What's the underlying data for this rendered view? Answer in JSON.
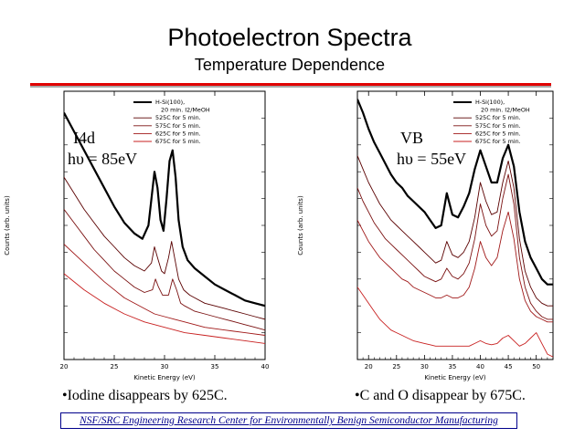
{
  "slide": {
    "title": "Photoelectron Spectra",
    "subtitle": "Temperature Dependence",
    "footer": "NSF/SRC Engineering Research Center for Environmentally Benign Semiconductor Manufacturing",
    "accent_color": "#e00000",
    "footer_color": "#00008b"
  },
  "chart_data": [
    {
      "type": "line",
      "id": "i4d",
      "label_line1": "I4d",
      "label_line2": "hυ = 85eV",
      "caption": "•Iodine disappears by 625C.",
      "xlabel": "Kinetic Energy (eV)",
      "ylabel": "Counts (arb. units)",
      "xlim": [
        20,
        40
      ],
      "xticks": [
        "20",
        "25",
        "30",
        "35",
        "40"
      ],
      "xtick_values": [
        20,
        25,
        30,
        35,
        40
      ],
      "legend": [
        "H-Si(100),",
        "20 min. I2/MeOH",
        "525C for 5 min.",
        "575C for 5 min.",
        "625C for 5 min.",
        "675C for 5 min."
      ],
      "legend_position": "top-right",
      "series": [
        {
          "name": "H-Si(100), 20 min. I2/MeOH",
          "color": "#000000",
          "bold": true,
          "x": [
            20,
            21,
            22,
            23,
            24,
            25,
            26,
            27,
            27.8,
            28.4,
            28.7,
            29.0,
            29.3,
            29.6,
            29.9,
            30.2,
            30.5,
            30.8,
            31.1,
            31.4,
            31.8,
            32.3,
            33,
            34,
            35,
            36,
            37,
            38,
            39,
            40
          ],
          "y": [
            0.92,
            0.85,
            0.78,
            0.71,
            0.64,
            0.57,
            0.51,
            0.47,
            0.45,
            0.5,
            0.6,
            0.7,
            0.64,
            0.52,
            0.48,
            0.6,
            0.74,
            0.78,
            0.68,
            0.52,
            0.42,
            0.37,
            0.34,
            0.31,
            0.28,
            0.26,
            0.24,
            0.22,
            0.21,
            0.2
          ]
        },
        {
          "name": "525C for 5 min.",
          "color": "#5a0000",
          "x": [
            20,
            21,
            22,
            23,
            24,
            25,
            26,
            27,
            28,
            28.7,
            29.0,
            29.3,
            29.7,
            30.0,
            30.4,
            30.7,
            31.0,
            31.4,
            31.9,
            32.5,
            33,
            34,
            35,
            36,
            37,
            38,
            39,
            40
          ],
          "y": [
            0.68,
            0.62,
            0.56,
            0.51,
            0.46,
            0.42,
            0.38,
            0.35,
            0.33,
            0.36,
            0.42,
            0.38,
            0.33,
            0.32,
            0.38,
            0.44,
            0.38,
            0.3,
            0.26,
            0.24,
            0.23,
            0.21,
            0.2,
            0.19,
            0.18,
            0.17,
            0.16,
            0.15
          ]
        },
        {
          "name": "575C for 5 min.",
          "color": "#7a1010",
          "x": [
            20,
            21,
            22,
            23,
            24,
            25,
            26,
            27,
            28,
            28.8,
            29.1,
            29.4,
            29.8,
            30.4,
            30.8,
            31.2,
            31.6,
            32,
            33,
            34,
            35,
            36,
            37,
            38,
            39,
            40
          ],
          "y": [
            0.56,
            0.51,
            0.46,
            0.41,
            0.37,
            0.33,
            0.3,
            0.27,
            0.25,
            0.26,
            0.3,
            0.27,
            0.24,
            0.24,
            0.3,
            0.26,
            0.21,
            0.2,
            0.18,
            0.17,
            0.16,
            0.15,
            0.14,
            0.13,
            0.12,
            0.11
          ]
        },
        {
          "name": "625C for 5 min.",
          "color": "#a01818",
          "x": [
            20,
            22,
            24,
            26,
            28,
            29,
            30,
            31,
            32,
            34,
            36,
            38,
            40
          ],
          "y": [
            0.43,
            0.36,
            0.29,
            0.23,
            0.19,
            0.17,
            0.16,
            0.15,
            0.14,
            0.12,
            0.11,
            0.1,
            0.09
          ]
        },
        {
          "name": "675C for 5 min.",
          "color": "#c82020",
          "x": [
            20,
            22,
            24,
            26,
            28,
            30,
            32,
            34,
            36,
            38,
            40
          ],
          "y": [
            0.32,
            0.26,
            0.21,
            0.17,
            0.14,
            0.12,
            0.1,
            0.09,
            0.08,
            0.07,
            0.06
          ]
        }
      ]
    },
    {
      "type": "line",
      "id": "vb",
      "label_line1": "VB",
      "label_line2": "hυ = 55eV",
      "caption": "•C and O disappear by 675C.",
      "xlabel": "Kinetic Energy (eV)",
      "ylabel": "Counts (arb. units)",
      "xlim": [
        18,
        53
      ],
      "xticks": [
        "20",
        "25",
        "30",
        "35",
        "40",
        "45",
        "50"
      ],
      "xtick_values": [
        20,
        25,
        30,
        35,
        40,
        45,
        50
      ],
      "legend": [
        "H-Si(100),",
        "20 min. I2/MeOH",
        "525C for 5 min.",
        "575C for 5 min.",
        "625C for 5 min.",
        "675C for 5 min."
      ],
      "legend_position": "top-right",
      "series": [
        {
          "name": "H-Si(100), 20 min. I2/MeOH",
          "color": "#000000",
          "bold": true,
          "x": [
            18,
            19,
            20,
            21,
            22,
            23,
            24,
            25,
            26,
            27,
            28,
            29,
            30,
            31,
            32,
            33,
            34,
            35,
            36,
            37,
            38,
            39,
            40,
            41,
            42,
            43,
            44,
            45,
            46,
            47,
            48,
            49,
            50,
            51,
            52,
            53
          ],
          "y": [
            0.97,
            0.92,
            0.86,
            0.81,
            0.77,
            0.73,
            0.69,
            0.66,
            0.64,
            0.61,
            0.59,
            0.57,
            0.55,
            0.52,
            0.49,
            0.5,
            0.62,
            0.54,
            0.53,
            0.57,
            0.62,
            0.71,
            0.78,
            0.72,
            0.66,
            0.66,
            0.75,
            0.8,
            0.72,
            0.55,
            0.44,
            0.38,
            0.34,
            0.3,
            0.28,
            0.28
          ]
        },
        {
          "name": "525C for 5 min.",
          "color": "#5a0000",
          "x": [
            18,
            19,
            20,
            21,
            22,
            23,
            24,
            25,
            26,
            27,
            28,
            29,
            30,
            31,
            32,
            33,
            34,
            35,
            36,
            37,
            38,
            39,
            40,
            41,
            42,
            43,
            44,
            45,
            46,
            47,
            48,
            49,
            50,
            51,
            52,
            53
          ],
          "y": [
            0.76,
            0.71,
            0.66,
            0.62,
            0.58,
            0.55,
            0.52,
            0.5,
            0.48,
            0.46,
            0.44,
            0.42,
            0.4,
            0.38,
            0.36,
            0.37,
            0.44,
            0.39,
            0.38,
            0.4,
            0.44,
            0.53,
            0.66,
            0.59,
            0.54,
            0.55,
            0.66,
            0.74,
            0.64,
            0.45,
            0.33,
            0.27,
            0.23,
            0.21,
            0.2,
            0.2
          ]
        },
        {
          "name": "575C for 5 min.",
          "color": "#7a1010",
          "x": [
            18,
            19,
            20,
            21,
            22,
            23,
            24,
            25,
            26,
            27,
            28,
            29,
            30,
            31,
            32,
            33,
            34,
            35,
            36,
            37,
            38,
            39,
            40,
            41,
            42,
            43,
            44,
            45,
            46,
            47,
            48,
            49,
            50,
            51,
            52,
            53
          ],
          "y": [
            0.64,
            0.59,
            0.55,
            0.51,
            0.48,
            0.45,
            0.43,
            0.41,
            0.39,
            0.37,
            0.35,
            0.33,
            0.31,
            0.3,
            0.29,
            0.3,
            0.34,
            0.31,
            0.3,
            0.32,
            0.36,
            0.45,
            0.58,
            0.5,
            0.46,
            0.48,
            0.6,
            0.69,
            0.58,
            0.38,
            0.27,
            0.21,
            0.18,
            0.16,
            0.15,
            0.15
          ]
        },
        {
          "name": "625C for 5 min.",
          "color": "#a01818",
          "x": [
            18,
            19,
            20,
            21,
            22,
            23,
            24,
            25,
            26,
            27,
            28,
            29,
            30,
            31,
            32,
            33,
            34,
            35,
            36,
            37,
            38,
            39,
            40,
            41,
            42,
            43,
            44,
            45,
            46,
            47,
            48,
            49,
            50,
            51,
            52,
            53
          ],
          "y": [
            0.52,
            0.48,
            0.44,
            0.41,
            0.38,
            0.36,
            0.34,
            0.32,
            0.3,
            0.29,
            0.27,
            0.26,
            0.25,
            0.24,
            0.23,
            0.23,
            0.24,
            0.23,
            0.23,
            0.24,
            0.27,
            0.34,
            0.44,
            0.38,
            0.35,
            0.38,
            0.48,
            0.55,
            0.45,
            0.3,
            0.22,
            0.18,
            0.16,
            0.15,
            0.14,
            0.14
          ]
        },
        {
          "name": "675C for 5 min.",
          "color": "#c82020",
          "x": [
            18,
            19,
            20,
            21,
            22,
            23,
            24,
            25,
            26,
            27,
            28,
            29,
            30,
            31,
            32,
            33,
            34,
            35,
            36,
            37,
            38,
            39,
            40,
            41,
            42,
            43,
            44,
            45,
            46,
            47,
            48,
            49,
            50,
            51,
            52,
            53
          ],
          "y": [
            0.27,
            0.24,
            0.21,
            0.18,
            0.15,
            0.13,
            0.11,
            0.1,
            0.09,
            0.08,
            0.07,
            0.065,
            0.06,
            0.055,
            0.05,
            0.05,
            0.05,
            0.05,
            0.05,
            0.05,
            0.05,
            0.06,
            0.07,
            0.06,
            0.055,
            0.06,
            0.08,
            0.09,
            0.07,
            0.05,
            0.06,
            0.08,
            0.1,
            0.06,
            0.02,
            0.01
          ]
        }
      ]
    }
  ]
}
